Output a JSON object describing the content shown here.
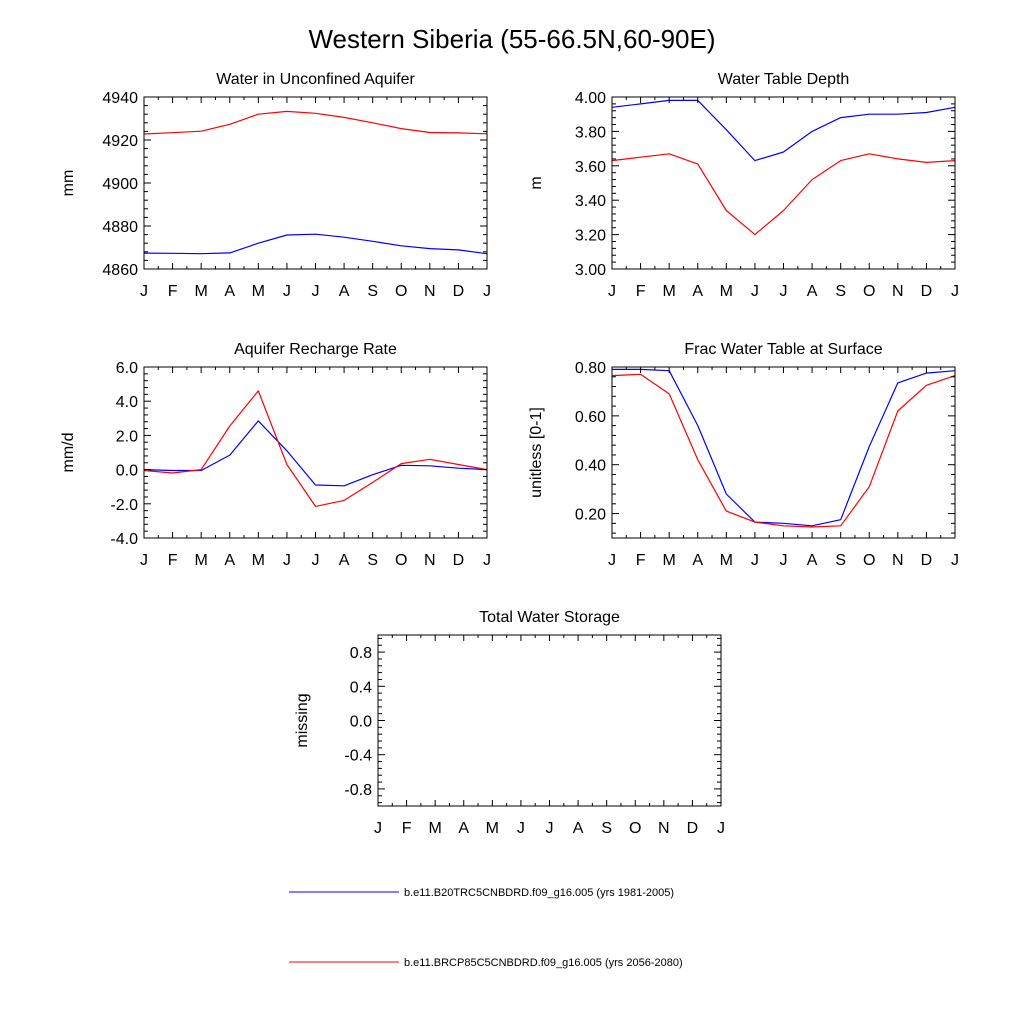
{
  "figure": {
    "title": "Western Siberia (55-66.5N,60-90E)"
  },
  "colors": {
    "series_1": "#0000ff",
    "series_2": "#ff0000",
    "axes": "#000000",
    "background": "#ffffff"
  },
  "legend": {
    "placement": "bottom-center",
    "entries": [
      {
        "label": "b.e11.B20TRC5CNBDRD.f09_g16.005 (yrs 1981-2005)",
        "color": "#0000ff"
      },
      {
        "label": "b.e11.BRCP85C5CNBDRD.f09_g16.005 (yrs 2056-2080)",
        "color": "#ff0000"
      }
    ]
  },
  "chart_data": [
    {
      "id": "aquifer_water",
      "type": "line",
      "title": "Water in Unconfined Aquifer",
      "xlabel": "",
      "ylabel": "mm",
      "categories": [
        "J",
        "F",
        "M",
        "A",
        "M",
        "J",
        "J",
        "A",
        "S",
        "O",
        "N",
        "D",
        "J"
      ],
      "ylim": [
        4860,
        4940
      ],
      "yticks": [
        4860,
        4880,
        4900,
        4920,
        4940
      ],
      "ytick_labels": [
        "4860",
        "4880",
        "4900",
        "4920",
        "4940"
      ],
      "grid": false,
      "series": [
        {
          "color": "#0000ff",
          "values": [
            4867.4,
            4867.3,
            4867.1,
            4867.5,
            4872.0,
            4875.8,
            4876.2,
            4874.8,
            4872.9,
            4870.8,
            4869.5,
            4868.9,
            4867.1
          ]
        },
        {
          "color": "#ff0000",
          "values": [
            4922.8,
            4923.4,
            4924.1,
            4927.3,
            4932.0,
            4933.3,
            4932.4,
            4930.5,
            4928.0,
            4925.3,
            4923.5,
            4923.3,
            4922.9
          ]
        }
      ]
    },
    {
      "id": "water_table_depth",
      "type": "line",
      "title": "Water Table Depth",
      "xlabel": "",
      "ylabel": "m",
      "categories": [
        "J",
        "F",
        "M",
        "A",
        "M",
        "J",
        "J",
        "A",
        "S",
        "O",
        "N",
        "D",
        "J"
      ],
      "ylim": [
        3.0,
        4.0
      ],
      "yticks": [
        3.0,
        3.2,
        3.4,
        3.6,
        3.8,
        4.0
      ],
      "ytick_labels": [
        "3.00",
        "3.20",
        "3.40",
        "3.60",
        "3.80",
        "4.00"
      ],
      "grid": false,
      "series": [
        {
          "color": "#0000ff",
          "values": [
            3.94,
            3.96,
            3.98,
            3.98,
            3.81,
            3.63,
            3.68,
            3.8,
            3.88,
            3.9,
            3.9,
            3.91,
            3.94
          ]
        },
        {
          "color": "#ff0000",
          "values": [
            3.63,
            3.65,
            3.67,
            3.61,
            3.34,
            3.2,
            3.34,
            3.52,
            3.63,
            3.67,
            3.64,
            3.62,
            3.63
          ]
        }
      ]
    },
    {
      "id": "aquifer_recharge",
      "type": "line",
      "title": "Aquifer Recharge Rate",
      "xlabel": "",
      "ylabel": "mm/d",
      "categories": [
        "J",
        "F",
        "M",
        "A",
        "M",
        "J",
        "J",
        "A",
        "S",
        "O",
        "N",
        "D",
        "J"
      ],
      "ylim": [
        -4.0,
        6.0
      ],
      "yticks": [
        -4,
        -2,
        0,
        2,
        4,
        6
      ],
      "ytick_labels": [
        "-4.0",
        "-2.0",
        "0.0",
        "2.0",
        "4.0",
        "6.0"
      ],
      "grid": false,
      "series": [
        {
          "color": "#0000ff",
          "values": [
            0.0,
            -0.05,
            -0.05,
            0.85,
            2.85,
            1.1,
            -0.9,
            -0.95,
            -0.3,
            0.25,
            0.22,
            0.08,
            0.0
          ]
        },
        {
          "color": "#ff0000",
          "values": [
            -0.05,
            -0.2,
            0.0,
            2.55,
            4.6,
            0.3,
            -2.15,
            -1.8,
            -0.75,
            0.35,
            0.6,
            0.3,
            0.0
          ]
        }
      ]
    },
    {
      "id": "frac_water_table",
      "type": "line",
      "title": "Frac Water Table at Surface",
      "xlabel": "",
      "ylabel": "unitless [0-1]",
      "categories": [
        "J",
        "F",
        "M",
        "A",
        "M",
        "J",
        "J",
        "A",
        "S",
        "O",
        "N",
        "D",
        "J"
      ],
      "ylim": [
        0.1,
        0.8
      ],
      "yticks": [
        0.2,
        0.4,
        0.6,
        0.8
      ],
      "ytick_labels": [
        "0.20",
        "0.40",
        "0.60",
        "0.80"
      ],
      "grid": false,
      "series": [
        {
          "color": "#0000ff",
          "values": [
            0.79,
            0.79,
            0.785,
            0.56,
            0.28,
            0.165,
            0.16,
            0.15,
            0.175,
            0.475,
            0.735,
            0.775,
            0.785
          ]
        },
        {
          "color": "#ff0000",
          "values": [
            0.765,
            0.77,
            0.69,
            0.42,
            0.21,
            0.165,
            0.15,
            0.145,
            0.15,
            0.31,
            0.62,
            0.725,
            0.765
          ]
        }
      ]
    },
    {
      "id": "total_water_storage",
      "type": "line",
      "title": "Total Water Storage",
      "xlabel": "",
      "ylabel": "missing",
      "categories": [
        "J",
        "F",
        "M",
        "A",
        "M",
        "J",
        "J",
        "A",
        "S",
        "O",
        "N",
        "D",
        "J"
      ],
      "ylim": [
        -1.0,
        1.0
      ],
      "yticks": [
        -0.8,
        -0.4,
        0.0,
        0.4,
        0.8
      ],
      "ytick_labels": [
        "-0.8",
        "-0.4",
        "0.0",
        "0.4",
        "0.8"
      ],
      "grid": false,
      "series": []
    }
  ]
}
